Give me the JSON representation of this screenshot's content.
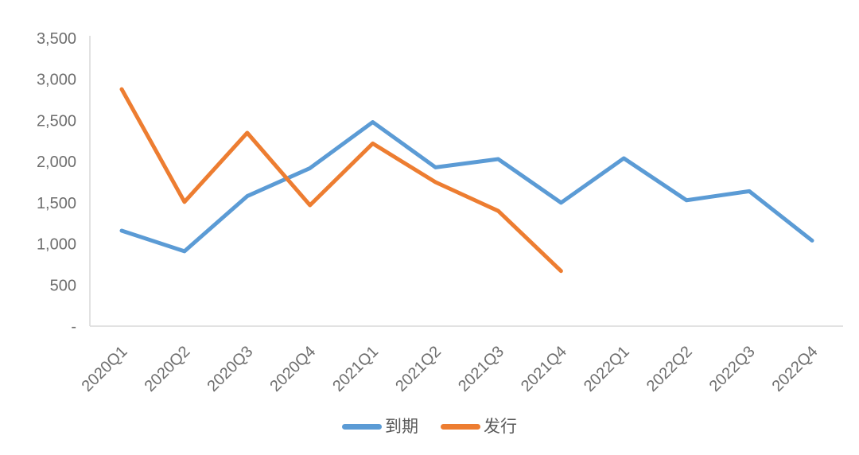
{
  "chart_data": {
    "type": "line",
    "title": "",
    "xlabel": "",
    "ylabel": "",
    "categories": [
      "2020Q1",
      "2020Q2",
      "2020Q3",
      "2020Q4",
      "2021Q1",
      "2021Q2",
      "2021Q3",
      "2021Q4",
      "2022Q1",
      "2022Q2",
      "2022Q3",
      "2022Q4"
    ],
    "series": [
      {
        "name": "到期",
        "color": "#5B9BD5",
        "values": [
          1160,
          910,
          1580,
          1920,
          2480,
          1930,
          2030,
          1500,
          2040,
          1530,
          1640,
          1040
        ]
      },
      {
        "name": "发行",
        "color": "#ED7D31",
        "values": [
          2880,
          1510,
          2350,
          1470,
          2220,
          1750,
          1400,
          670
        ]
      }
    ],
    "ylim": [
      0,
      3500
    ],
    "ytick_interval": 500,
    "ytick_labels": [
      "-",
      "500",
      "1,000",
      "1,500",
      "2,000",
      "2,500",
      "3,000",
      "3,500"
    ],
    "grid": false,
    "legend_position": "bottom",
    "x_label_rotation_deg": -45,
    "colors": {
      "axis_line": "#D9D9D9",
      "tick_text": "#6E6E6E",
      "legend_text": "#595959",
      "background": "#FFFFFF"
    }
  }
}
